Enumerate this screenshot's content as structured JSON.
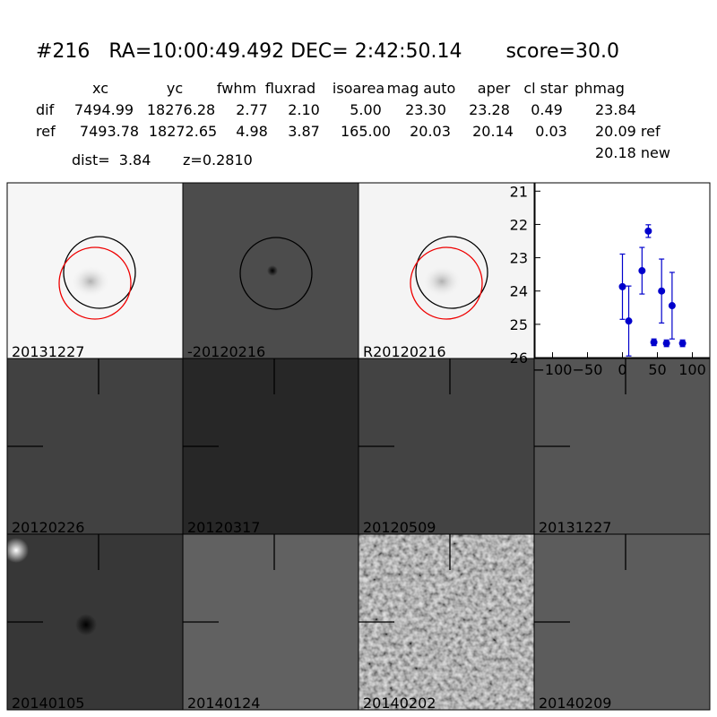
{
  "header": {
    "title": "#216   RA=10:00:49.492 DEC= 2:42:50.14       score=30.0"
  },
  "table": {
    "columns": [
      "xc",
      "yc",
      "fwhm",
      "fluxrad",
      "isoarea",
      "mag auto",
      "aper",
      "cl star",
      "phmag"
    ],
    "rows": [
      [
        "dif",
        "7494.99",
        "18276.28",
        "2.77",
        "2.10",
        "5.00",
        "23.30",
        "23.28",
        "0.49",
        "23.84"
      ],
      [
        "ref",
        "7493.78",
        "18272.65",
        "4.98",
        "3.87",
        "165.00",
        "20.03",
        "20.14",
        "0.03",
        "20.09 ref"
      ]
    ],
    "extra": "20.18 new"
  },
  "info": "dist=  3.84       z=0.2810",
  "stamps": [
    {
      "label": "20131227",
      "color": "#000000"
    },
    {
      "label": "-20120216",
      "color": "#000000"
    },
    {
      "label": "R20120216",
      "color": "#000000"
    },
    {
      "label": "20120226",
      "color": "#000000"
    },
    {
      "label": "20120317",
      "color": "#000000"
    },
    {
      "label": "20120509",
      "color": "#000000"
    },
    {
      "label": "20131227",
      "color": "#ff0000"
    },
    {
      "label": "20140105",
      "color": "#000000"
    },
    {
      "label": "20140124",
      "color": "#000000"
    },
    {
      "label": "20140202",
      "color": "#000000"
    },
    {
      "label": "20140209",
      "color": "#000000"
    }
  ],
  "chart_data": {
    "type": "scatter",
    "x": [
      0,
      9,
      28,
      37,
      45,
      56,
      63,
      71,
      86
    ],
    "series": [
      {
        "color": "#0000cc",
        "values": [
          23.87,
          24.9,
          23.39,
          22.2,
          25.54,
          24.0,
          25.57,
          24.44,
          25.57
        ],
        "errors": [
          0.98,
          1.05,
          0.7,
          0.19,
          0.1,
          0.96,
          0.1,
          1.0,
          0.1
        ]
      }
    ],
    "xlim": [
      -125,
      125
    ],
    "xticks": [
      {
        "value": -100,
        "label": "−100"
      },
      {
        "value": -50,
        "label": "−50"
      },
      0,
      50,
      100
    ],
    "ylim": [
      26,
      20.75
    ],
    "yticks": [
      21,
      22,
      23,
      24,
      25,
      26
    ]
  }
}
